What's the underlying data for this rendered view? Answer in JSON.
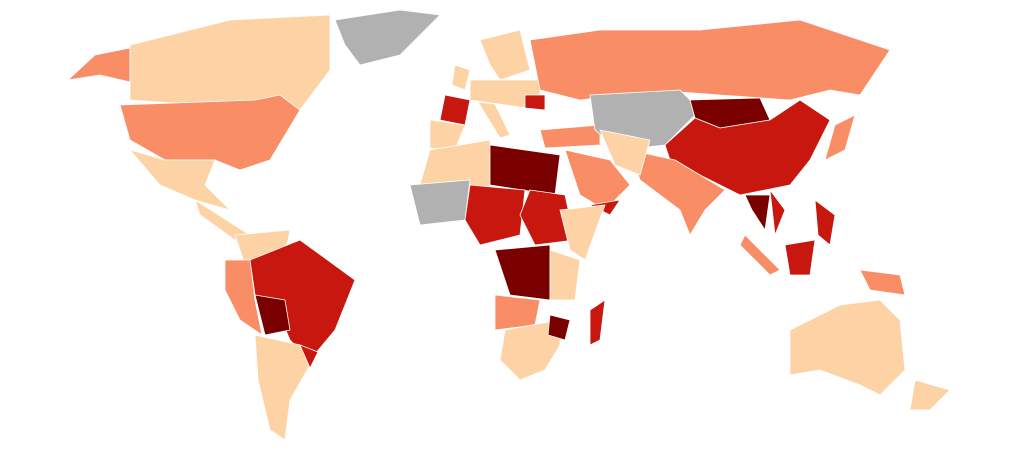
{
  "map": {
    "colors": [
      "#fdd3a6",
      "#f98d66",
      "#c8170e",
      "#7a0000",
      "#b1b1b1"
    ],
    "stroke": "#ffffff"
  }
}
